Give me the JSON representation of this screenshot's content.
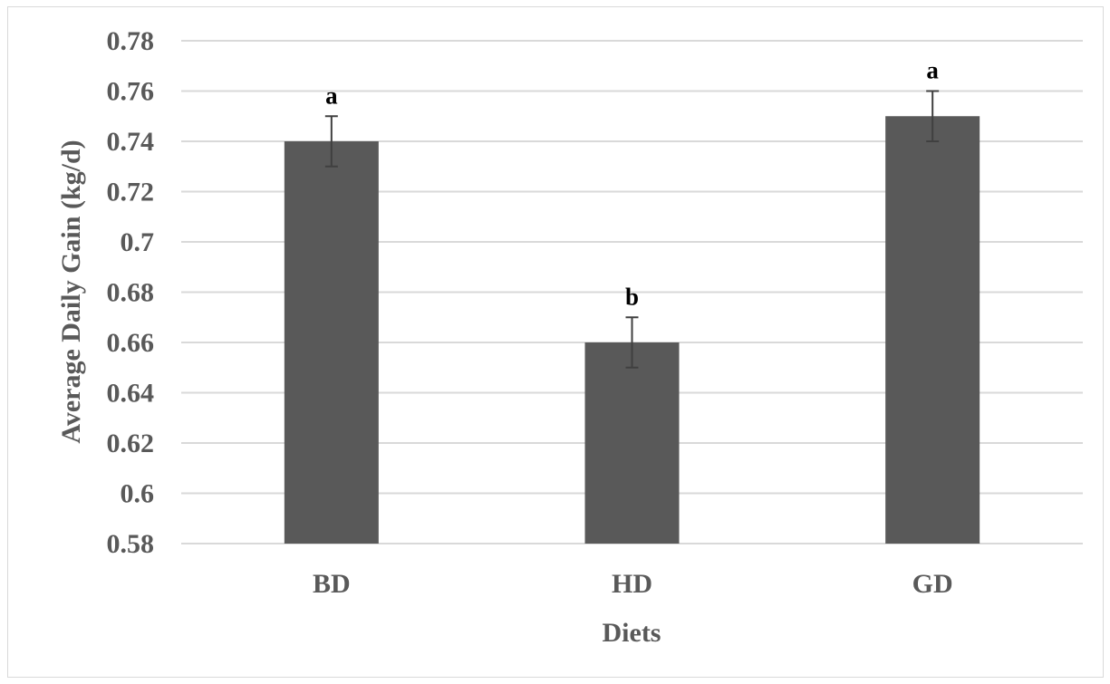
{
  "chart_data": {
    "type": "bar",
    "title": "",
    "xlabel": "Diets",
    "ylabel": "Average Daily Gain (kg/d)",
    "ylim": [
      0.58,
      0.78
    ],
    "yticks": [
      "0.58",
      "0.6",
      "0.62",
      "0.64",
      "0.66",
      "0.68",
      "0.7",
      "0.72",
      "0.74",
      "0.76",
      "0.78"
    ],
    "categories": [
      "BD",
      "HD",
      "GD"
    ],
    "values": [
      0.74,
      0.66,
      0.75
    ],
    "errors": [
      0.01,
      0.01,
      0.01
    ],
    "annotations": [
      "a",
      "b",
      "a"
    ],
    "grid": true,
    "legend": "none",
    "colors": {
      "bar": "#595959",
      "grid": "#d9d9d9",
      "error_bar": "#404040"
    }
  }
}
